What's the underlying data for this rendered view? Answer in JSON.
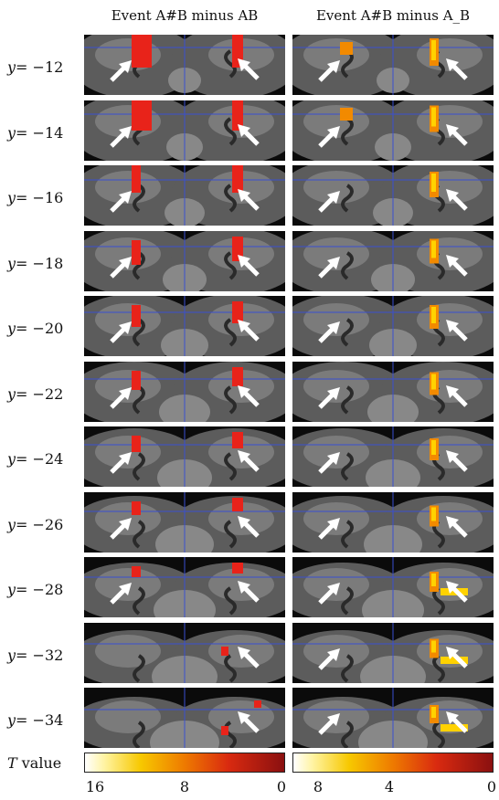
{
  "columns": [
    {
      "title": "Event A#B minus AB"
    },
    {
      "title": "Event A#B minus A_B"
    }
  ],
  "row_variable": "y",
  "rows": [
    "= −12",
    "= −14",
    "= −16",
    "= −18",
    "= −20",
    "= −22",
    "= −24",
    "= −26",
    "= −28",
    "= −32",
    "= −34"
  ],
  "colorbar": {
    "label_var": "T",
    "label_text": " value",
    "left_ticks": [
      "16",
      "8",
      "0"
    ],
    "right_ticks": [
      "8",
      "4",
      "0"
    ]
  },
  "colors": {
    "activation_left": "#e8231a",
    "activation_right_hot": "#ffd200",
    "activation_right_mid": "#f28a00",
    "crosshair": "#3a4fd0",
    "arrow": "#ffffff"
  }
}
